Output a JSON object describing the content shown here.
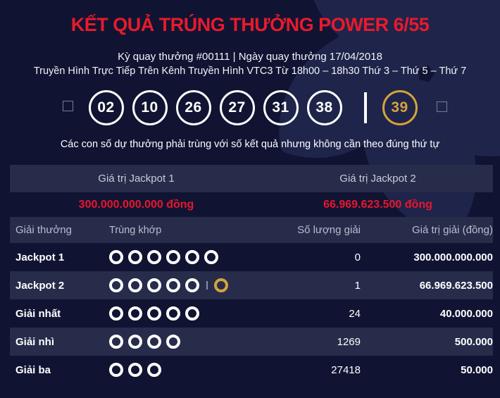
{
  "colors": {
    "background": "#101432",
    "band": "#262c4a",
    "accent_red": "#e81a2c",
    "accent_gold": "#d2a43e",
    "watermark": "#1f244a"
  },
  "header": {
    "title": "KẾT QUẢ TRÚNG THƯỞNG POWER 6/55",
    "draw_info": "Kỳ quay thưởng #00111 | Ngày quay thưởng 17/04/2018",
    "broadcast": "Truyền Hình Trực Tiếp Trên Kênh Truyền Hình VTC3 Từ 18h00 – 18h30 Thứ 3 – Thứ 5 – Thứ 7"
  },
  "results": {
    "main_numbers": [
      "02",
      "10",
      "26",
      "27",
      "31",
      "38"
    ],
    "power_number": "39",
    "note": "Các con số dự thưởng phải trùng với số kết quả nhưng không cần theo đúng thứ tự"
  },
  "jackpot_summary": {
    "columns": [
      {
        "label": "Giá trị Jackpot 1",
        "value": "300.000.000.000 đồng"
      },
      {
        "label": "Giá trị Jackpot 2",
        "value": "66.969.623.500 đồng"
      }
    ]
  },
  "prize_table": {
    "headers": [
      "Giải thưởng",
      "Trùng khớp",
      "Số lượng giải",
      "Giá trị giải (đồng)"
    ],
    "rows": [
      {
        "name": "Jackpot 1",
        "white": 6,
        "gold": 0,
        "count": "0",
        "value": "300.000.000.000"
      },
      {
        "name": "Jackpot 2",
        "white": 5,
        "gold": 1,
        "count": "1",
        "value": "66.969.623.500"
      },
      {
        "name": "Giải nhất",
        "white": 5,
        "gold": 0,
        "count": "24",
        "value": "40.000.000"
      },
      {
        "name": "Giải nhì",
        "white": 4,
        "gold": 0,
        "count": "1269",
        "value": "500.000"
      },
      {
        "name": "Giải ba",
        "white": 3,
        "gold": 0,
        "count": "27418",
        "value": "50.000"
      }
    ]
  }
}
